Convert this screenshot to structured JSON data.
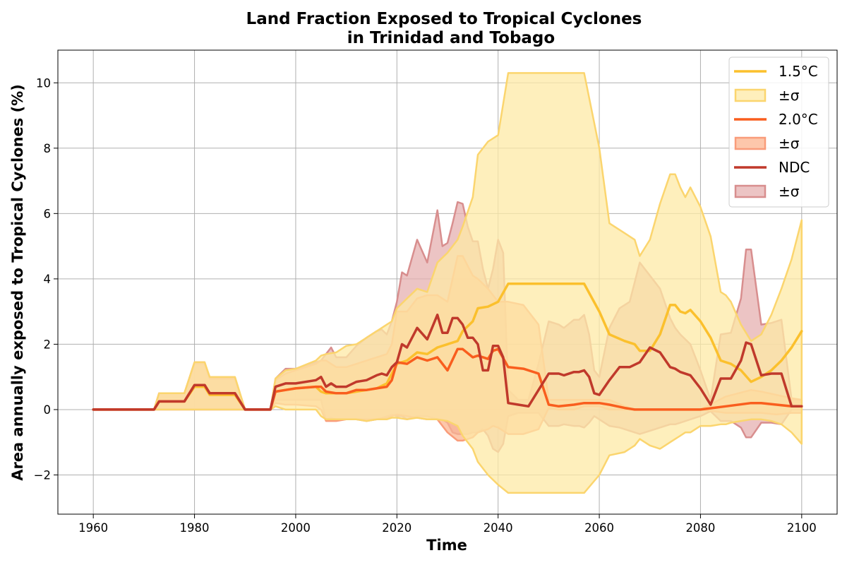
{
  "chart_data": {
    "type": "line",
    "title": "Land Fraction Exposed to Tropical Cyclones",
    "subtitle": "in Trinidad and Tobago",
    "xlabel": "Time",
    "ylabel": "Area annually exposed to Tropical Cyclones (%)",
    "xlim": [
      1953,
      2107
    ],
    "ylim": [
      -3.2,
      11.0
    ],
    "xticks": [
      1960,
      1980,
      2000,
      2020,
      2040,
      2060,
      2080,
      2100
    ],
    "yticks": [
      -2,
      0,
      2,
      4,
      6,
      8,
      10
    ],
    "grid": true,
    "legend_position": "top-right",
    "series": [
      {
        "name": "1.5°C",
        "band_label": "±σ",
        "color": "#fbc02d",
        "fill": "#fde9a6",
        "band_stroke": "#fbd56e",
        "x": [
          1960,
          1972,
          1973,
          1978,
          1980,
          1982,
          1983,
          1988,
          1990,
          1995,
          1996,
          1998,
          2000,
          2004,
          2005,
          2006,
          2008,
          2010,
          2012,
          2014,
          2016,
          2018,
          2019,
          2020,
          2022,
          2024,
          2026,
          2028,
          2030,
          2032,
          2033,
          2035,
          2036,
          2038,
          2040,
          2042,
          2045,
          2050,
          2055,
          2057,
          2060,
          2062,
          2065,
          2067,
          2068,
          2070,
          2072,
          2074,
          2075,
          2076,
          2077,
          2078,
          2080,
          2082,
          2084,
          2085,
          2086,
          2088,
          2090,
          2092,
          2094,
          2096,
          2098,
          2100
        ],
        "values": [
          0,
          0,
          0.25,
          0.25,
          0.7,
          0.7,
          0.45,
          0.45,
          0,
          0,
          0.55,
          0.6,
          0.65,
          0.7,
          0.55,
          0.5,
          0.5,
          0.5,
          0.55,
          0.6,
          0.65,
          0.8,
          1.1,
          1.4,
          1.5,
          1.75,
          1.7,
          1.9,
          2.0,
          2.1,
          2.4,
          2.7,
          3.1,
          3.15,
          3.3,
          3.85,
          3.85,
          3.85,
          3.85,
          3.85,
          3.0,
          2.3,
          2.1,
          2.0,
          1.8,
          1.8,
          2.3,
          3.2,
          3.2,
          3.0,
          2.95,
          3.05,
          2.7,
          2.2,
          1.5,
          1.45,
          1.4,
          1.2,
          0.85,
          1.0,
          1.2,
          1.5,
          1.9,
          2.4
        ],
        "upper": [
          0,
          0,
          0.5,
          0.5,
          1.45,
          1.45,
          1.0,
          1.0,
          0,
          0,
          0.95,
          1.2,
          1.25,
          1.5,
          1.65,
          1.7,
          1.75,
          1.95,
          2.0,
          2.2,
          2.4,
          2.6,
          2.7,
          3.1,
          3.4,
          3.7,
          3.6,
          4.5,
          4.8,
          5.2,
          5.6,
          6.5,
          7.8,
          8.2,
          8.4,
          10.3,
          10.3,
          10.3,
          10.3,
          10.3,
          8.0,
          5.7,
          5.4,
          5.2,
          4.7,
          5.2,
          6.3,
          7.2,
          7.2,
          6.8,
          6.5,
          6.8,
          6.2,
          5.3,
          3.6,
          3.5,
          3.3,
          2.6,
          2.1,
          2.3,
          2.9,
          3.7,
          4.6,
          5.8
        ],
        "lower": [
          0,
          0,
          0,
          0,
          0,
          0,
          0,
          0,
          0,
          0,
          0.1,
          0,
          0,
          0,
          -0.2,
          -0.3,
          -0.3,
          -0.3,
          -0.3,
          -0.35,
          -0.3,
          -0.3,
          -0.25,
          -0.25,
          -0.3,
          -0.25,
          -0.3,
          -0.3,
          -0.35,
          -0.5,
          -0.8,
          -1.2,
          -1.6,
          -2.0,
          -2.3,
          -2.55,
          -2.55,
          -2.55,
          -2.55,
          -2.55,
          -2.0,
          -1.4,
          -1.3,
          -1.1,
          -0.9,
          -1.1,
          -1.2,
          -1.0,
          -0.9,
          -0.8,
          -0.7,
          -0.7,
          -0.5,
          -0.5,
          -0.45,
          -0.45,
          -0.4,
          -0.35,
          -0.3,
          -0.3,
          -0.35,
          -0.45,
          -0.7,
          -1.05
        ]
      },
      {
        "name": "2.0°C",
        "band_label": "±σ",
        "color": "#f95e1e",
        "fill": "#fcb48f",
        "band_stroke": "#f99c7a",
        "x": [
          1960,
          1972,
          1973,
          1978,
          1980,
          1982,
          1983,
          1988,
          1990,
          1995,
          1996,
          1998,
          2000,
          2004,
          2005,
          2006,
          2008,
          2010,
          2012,
          2014,
          2016,
          2018,
          2019,
          2020,
          2022,
          2024,
          2026,
          2028,
          2030,
          2032,
          2033,
          2035,
          2036,
          2038,
          2039,
          2040,
          2042,
          2045,
          2048,
          2050,
          2052,
          2055,
          2057,
          2060,
          2062,
          2065,
          2067,
          2070,
          2075,
          2080,
          2085,
          2090,
          2092,
          2095,
          2098,
          2100
        ],
        "values": [
          0,
          0,
          0.25,
          0.25,
          0.75,
          0.75,
          0.5,
          0.5,
          0,
          0,
          0.55,
          0.6,
          0.65,
          0.7,
          0.7,
          0.55,
          0.5,
          0.5,
          0.6,
          0.6,
          0.65,
          0.7,
          0.9,
          1.45,
          1.4,
          1.6,
          1.5,
          1.6,
          1.2,
          1.85,
          1.85,
          1.6,
          1.65,
          1.55,
          1.8,
          1.85,
          1.3,
          1.25,
          1.1,
          0.15,
          0.1,
          0.15,
          0.2,
          0.2,
          0.15,
          0.05,
          0,
          0,
          0,
          0,
          0.1,
          0.2,
          0.2,
          0.15,
          0.1,
          0.1
        ],
        "upper": [
          0,
          0,
          0.5,
          0.5,
          1.45,
          1.45,
          0.95,
          0.95,
          0,
          0,
          0.9,
          1.1,
          1.2,
          1.4,
          1.5,
          1.5,
          1.3,
          1.3,
          1.4,
          1.5,
          1.6,
          1.7,
          2.0,
          3.0,
          3.0,
          3.4,
          3.5,
          3.5,
          3.3,
          4.7,
          4.7,
          4.1,
          4.0,
          3.7,
          3.5,
          3.3,
          3.3,
          3.2,
          2.6,
          0.3,
          0.3,
          0.3,
          0.3,
          0.3,
          0.3,
          0.1,
          0,
          0,
          0,
          0,
          0.4,
          0.6,
          0.55,
          0.45,
          0.35,
          0.3
        ],
        "lower": [
          0,
          0,
          0,
          0,
          0,
          0,
          0,
          0,
          0,
          0,
          0.2,
          0.15,
          0.15,
          0.1,
          0,
          -0.35,
          -0.35,
          -0.3,
          -0.3,
          -0.3,
          -0.3,
          -0.25,
          -0.2,
          -0.15,
          -0.2,
          -0.25,
          -0.3,
          -0.3,
          -0.7,
          -0.95,
          -0.95,
          -0.85,
          -0.7,
          -0.6,
          -0.5,
          -0.55,
          -0.75,
          -0.75,
          -0.6,
          0.05,
          0,
          0,
          0.1,
          0.1,
          0,
          0,
          0,
          0,
          0,
          0,
          -0.1,
          -0.1,
          -0.1,
          -0.15,
          -0.1,
          -0.1
        ]
      },
      {
        "name": "NDC",
        "band_label": "±σ",
        "color": "#c0392b",
        "fill": "#e6b0b0",
        "band_stroke": "#d88e8e",
        "x": [
          1960,
          1972,
          1973,
          1978,
          1980,
          1982,
          1983,
          1988,
          1990,
          1995,
          1996,
          1998,
          2000,
          2004,
          2005,
          2006,
          2007,
          2008,
          2010,
          2012,
          2014,
          2016,
          2017,
          2018,
          2019,
          2020,
          2021,
          2022,
          2024,
          2026,
          2028,
          2029,
          2030,
          2031,
          2032,
          2033,
          2034,
          2035,
          2036,
          2037,
          2038,
          2039,
          2040,
          2041,
          2042,
          2044,
          2046,
          2048,
          2050,
          2052,
          2053,
          2055,
          2056,
          2057,
          2058,
          2059,
          2060,
          2062,
          2064,
          2066,
          2068,
          2070,
          2072,
          2074,
          2075,
          2076,
          2078,
          2080,
          2082,
          2084,
          2086,
          2088,
          2089,
          2090,
          2092,
          2094,
          2096,
          2098,
          2100
        ],
        "values": [
          0,
          0,
          0.25,
          0.25,
          0.75,
          0.75,
          0.5,
          0.5,
          0,
          0,
          0.7,
          0.8,
          0.8,
          0.9,
          1.0,
          0.7,
          0.8,
          0.7,
          0.7,
          0.85,
          0.9,
          1.05,
          1.1,
          1.05,
          1.3,
          1.45,
          2.0,
          1.9,
          2.5,
          2.15,
          2.9,
          2.35,
          2.35,
          2.8,
          2.8,
          2.6,
          2.2,
          2.2,
          2.0,
          1.2,
          1.2,
          1.95,
          1.95,
          1.6,
          0.2,
          0.15,
          0.1,
          0.6,
          1.1,
          1.1,
          1.05,
          1.15,
          1.15,
          1.2,
          1.0,
          0.5,
          0.45,
          0.9,
          1.3,
          1.3,
          1.45,
          1.9,
          1.75,
          1.3,
          1.25,
          1.15,
          1.05,
          0.65,
          0.15,
          0.95,
          0.95,
          1.5,
          2.05,
          2.0,
          1.05,
          1.1,
          1.1,
          0.1,
          0.1
        ],
        "upper": [
          0,
          0,
          0.5,
          0.5,
          1.4,
          1.4,
          0.95,
          0.95,
          0,
          0,
          0.95,
          1.25,
          1.25,
          1.45,
          1.5,
          1.7,
          1.9,
          1.6,
          1.6,
          1.95,
          2.2,
          2.4,
          2.45,
          2.3,
          2.7,
          3.3,
          4.2,
          4.1,
          5.2,
          4.5,
          6.1,
          5.0,
          5.1,
          5.7,
          6.35,
          6.3,
          5.6,
          5.15,
          5.15,
          4.3,
          3.7,
          4.3,
          5.2,
          4.8,
          0.6,
          0.3,
          0.3,
          1.4,
          2.7,
          2.6,
          2.5,
          2.75,
          2.75,
          2.9,
          2.3,
          1.2,
          1.0,
          2.5,
          3.1,
          3.3,
          4.5,
          4.1,
          3.7,
          2.8,
          2.5,
          2.3,
          2.0,
          1.2,
          0.3,
          2.3,
          2.35,
          3.4,
          4.9,
          4.9,
          2.6,
          2.65,
          2.75,
          0.3,
          0.3
        ],
        "lower": [
          0,
          0,
          0,
          0,
          0,
          0,
          0,
          0,
          0,
          0,
          0.3,
          0.3,
          0.3,
          0.3,
          0.3,
          -0.3,
          -0.25,
          -0.3,
          -0.3,
          -0.3,
          -0.35,
          -0.3,
          -0.25,
          -0.2,
          -0.15,
          -0.2,
          -0.2,
          -0.3,
          -0.2,
          -0.2,
          -0.3,
          -0.3,
          -0.4,
          -0.7,
          -0.75,
          -0.75,
          -0.75,
          -0.7,
          -0.7,
          -0.6,
          -0.8,
          -1.2,
          -1.3,
          -1.05,
          -0.2,
          -0.1,
          -0.1,
          -0.1,
          -0.5,
          -0.5,
          -0.45,
          -0.5,
          -0.5,
          -0.55,
          -0.4,
          -0.2,
          -0.3,
          -0.5,
          -0.55,
          -0.65,
          -0.75,
          -0.65,
          -0.55,
          -0.45,
          -0.45,
          -0.4,
          -0.3,
          -0.2,
          -0.05,
          -0.35,
          -0.35,
          -0.55,
          -0.85,
          -0.85,
          -0.4,
          -0.4,
          -0.45,
          0,
          0
        ]
      }
    ]
  }
}
